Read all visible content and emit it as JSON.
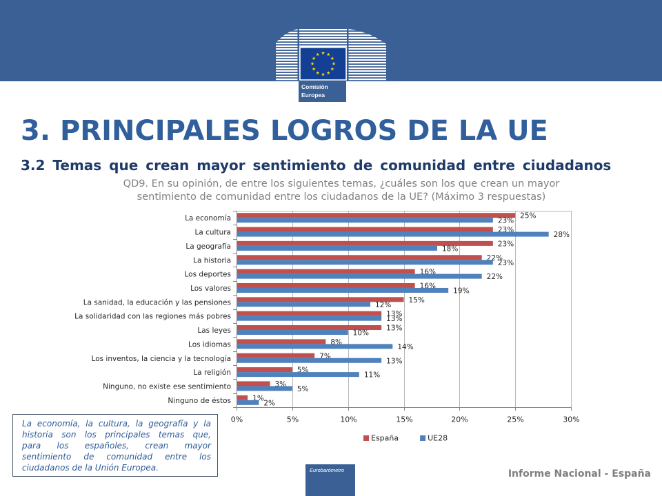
{
  "colors": {
    "band": "#3a6095",
    "flag": "#133f94",
    "stars": "#ffdd00",
    "title": "#305f9c",
    "subtitle": "#1f3a68",
    "question": "#808080",
    "note_text": "#2b5a98",
    "footer_text": "#7f7f7f"
  },
  "header": {
    "logo_icon": "european-commission-logo",
    "logo_line1": "Comisión",
    "logo_line2": "Europea"
  },
  "title": "3. PRINCIPALES LOGROS DE LA UE",
  "subtitle": "3.2 Temas que crean mayor sentimiento de comunidad entre ciudadanos",
  "question": {
    "line1": "QD9. En su opinión, de entre los siguientes temas, ¿cuáles son los que crean un mayor",
    "line2": "sentimiento de comunidad entre los ciudadanos de la UE? (Máximo 3 respuestas)"
  },
  "chart_data": {
    "type": "bar",
    "orientation": "horizontal",
    "categories": [
      "La economía",
      "La cultura",
      "La geografía",
      "La historia",
      "Los deportes",
      "Los valores",
      "La sanidad, la educación y las pensiones",
      "La solidaridad con las regiones más pobres",
      "Las leyes",
      "Los idiomas",
      "Los inventos, la ciencia y la tecnología",
      "La religión",
      "Ninguno, no existe ese sentimiento",
      "Ninguno de éstos"
    ],
    "series": [
      {
        "name": "España",
        "color": "#c0504d",
        "values": [
          25,
          23,
          23,
          22,
          16,
          16,
          15,
          13,
          13,
          8,
          7,
          5,
          3,
          1
        ]
      },
      {
        "name": "UE28",
        "color": "#4f81bd",
        "values": [
          23,
          28,
          18,
          23,
          22,
          19,
          12,
          13,
          10,
          14,
          13,
          11,
          5,
          2
        ]
      }
    ],
    "value_suffix": "%",
    "xlim": [
      0,
      30
    ],
    "xticks": [
      0,
      5,
      10,
      15,
      20,
      25,
      30
    ],
    "xtick_labels": [
      "0%",
      "5%",
      "10%",
      "15%",
      "20%",
      "25%",
      "30%"
    ],
    "grid": true,
    "data_labels": true,
    "legend_position": "bottom"
  },
  "note": {
    "lines": [
      "La economía, la cultura, la geografía y la",
      "historia son los principales temas que,",
      "para los españoles, crean mayor",
      "sentimiento de comunidad entre los",
      "ciudadanos de la Unión Europea."
    ]
  },
  "footer": {
    "eurobarometer_label": "Eurobarómetro",
    "report_label": "Informe Nacional - España"
  }
}
